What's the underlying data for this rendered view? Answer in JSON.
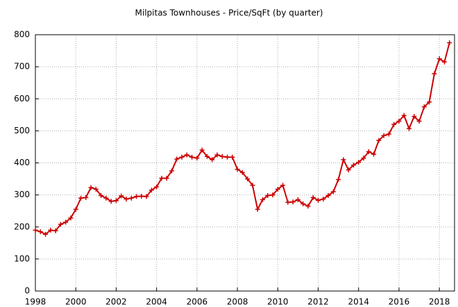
{
  "chart_data": {
    "type": "line",
    "title": "Milpitas Townhouses - Price/SqFt (by quarter)",
    "x": [
      1998,
      1998.25,
      1998.5,
      1998.75,
      1999,
      1999.25,
      1999.5,
      1999.75,
      2000,
      2000.25,
      2000.5,
      2000.75,
      2001,
      2001.25,
      2001.5,
      2001.75,
      2002,
      2002.25,
      2002.5,
      2002.75,
      2003,
      2003.25,
      2003.5,
      2003.75,
      2004,
      2004.25,
      2004.5,
      2004.75,
      2005,
      2005.25,
      2005.5,
      2005.75,
      2006,
      2006.25,
      2006.5,
      2006.75,
      2007,
      2007.25,
      2007.5,
      2007.75,
      2008,
      2008.25,
      2008.5,
      2008.75,
      2009,
      2009.25,
      2009.5,
      2009.75,
      2010,
      2010.25,
      2010.5,
      2010.75,
      2011,
      2011.25,
      2011.5,
      2011.75,
      2012,
      2012.25,
      2012.5,
      2012.75,
      2013,
      2013.25,
      2013.5,
      2013.75,
      2014,
      2014.25,
      2014.5,
      2014.75,
      2015,
      2015.25,
      2015.5,
      2015.75,
      2016,
      2016.25,
      2016.5,
      2016.75,
      2017,
      2017.25,
      2017.5,
      2017.75,
      2018,
      2018.25,
      2018.5
    ],
    "series": [
      {
        "color": "#cc0000",
        "values": [
          190,
          185,
          177,
          190,
          188,
          208,
          215,
          228,
          255,
          290,
          292,
          323,
          318,
          298,
          290,
          280,
          282,
          297,
          287,
          290,
          295,
          296,
          295,
          315,
          325,
          352,
          352,
          375,
          412,
          418,
          425,
          418,
          415,
          440,
          420,
          410,
          425,
          420,
          418,
          418,
          380,
          370,
          350,
          330,
          255,
          285,
          298,
          300,
          318,
          330,
          277,
          278,
          285,
          272,
          265,
          292,
          283,
          287,
          298,
          310,
          348,
          410,
          378,
          393,
          402,
          415,
          435,
          427,
          470,
          485,
          490,
          520,
          530,
          548,
          507,
          545,
          530,
          575,
          590,
          678,
          725,
          715,
          775
        ]
      }
    ],
    "xlim": [
      1998,
      2018.75
    ],
    "xticks": [
      1998,
      2000,
      2002,
      2004,
      2006,
      2008,
      2010,
      2012,
      2014,
      2016,
      2018
    ],
    "ylim": [
      0,
      800
    ],
    "yticks": [
      0,
      100,
      200,
      300,
      400,
      500,
      600,
      700,
      800
    ],
    "grid": true
  }
}
